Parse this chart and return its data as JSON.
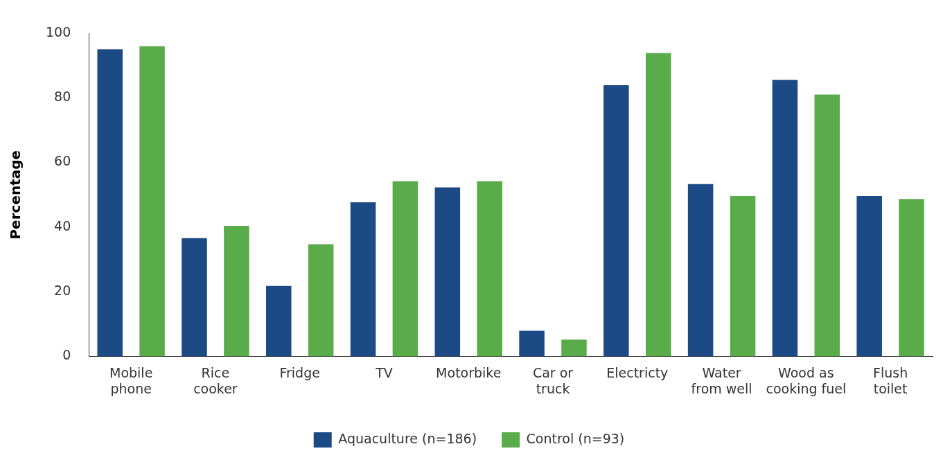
{
  "chart_data": {
    "type": "bar",
    "ylabel": "Percentage",
    "categories": [
      "Mobile phone",
      "Rice cooker",
      "Fridge",
      "TV",
      "Motorbike",
      "Car or truck",
      "Electricty",
      "Water from well",
      "Wood as cooking fuel",
      "Flush toilet"
    ],
    "series": [
      {
        "name": "Aquaculture (n=186)",
        "color": "#1c4a85",
        "values": [
          95,
          36.6,
          21.8,
          47.7,
          52.3,
          7.9,
          83.9,
          53.3,
          85.6,
          49.6
        ]
      },
      {
        "name": "Control (n=93)",
        "color": "#5aac4a",
        "values": [
          96,
          40.4,
          34.7,
          54.2,
          54.2,
          5.2,
          93.9,
          49.6,
          81,
          48.7
        ]
      }
    ],
    "ylim": [
      0,
      100
    ],
    "yticks": [
      0,
      20,
      40,
      60,
      80,
      100
    ],
    "grid": false,
    "legend": "bottom"
  }
}
